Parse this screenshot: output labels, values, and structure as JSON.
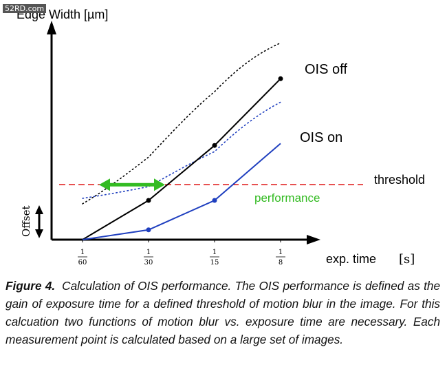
{
  "watermark": "52RD.com",
  "figure_label": "Figure 4.",
  "caption": "Calculation of OIS performance. The OIS performance is defined as the gain of exposure time for a defined threshold of motion blur in the image. For this calcuation two functions of motion blur vs. exposure time are necessary. Each measurement point is calculated based on a large set of images.",
  "chart_data": {
    "type": "line",
    "ylabel": "Edge Width [µm]",
    "xlabel": "exp. time",
    "xunit": "[s]",
    "x_ticks": [
      {
        "num": "1",
        "den": "60"
      },
      {
        "num": "1",
        "den": "30"
      },
      {
        "num": "1",
        "den": "15"
      },
      {
        "num": "1",
        "den": "8"
      }
    ],
    "x_values": [
      1,
      2,
      3,
      4
    ],
    "series": [
      {
        "name": "OIS off",
        "color": "#000000",
        "values": [
          0,
          1.0,
          2.4,
          4.1
        ]
      },
      {
        "name": "OIS on",
        "color": "#1f3fbf",
        "values": [
          0,
          0.25,
          1.0,
          2.45
        ]
      }
    ],
    "threshold": {
      "label": "threshold",
      "value": 1.4,
      "color": "#e02020"
    },
    "performance": {
      "label": "performance",
      "color": "#33bb22",
      "from_x": 1.25,
      "to_x": 2.25
    },
    "offset_label": "Offset"
  }
}
